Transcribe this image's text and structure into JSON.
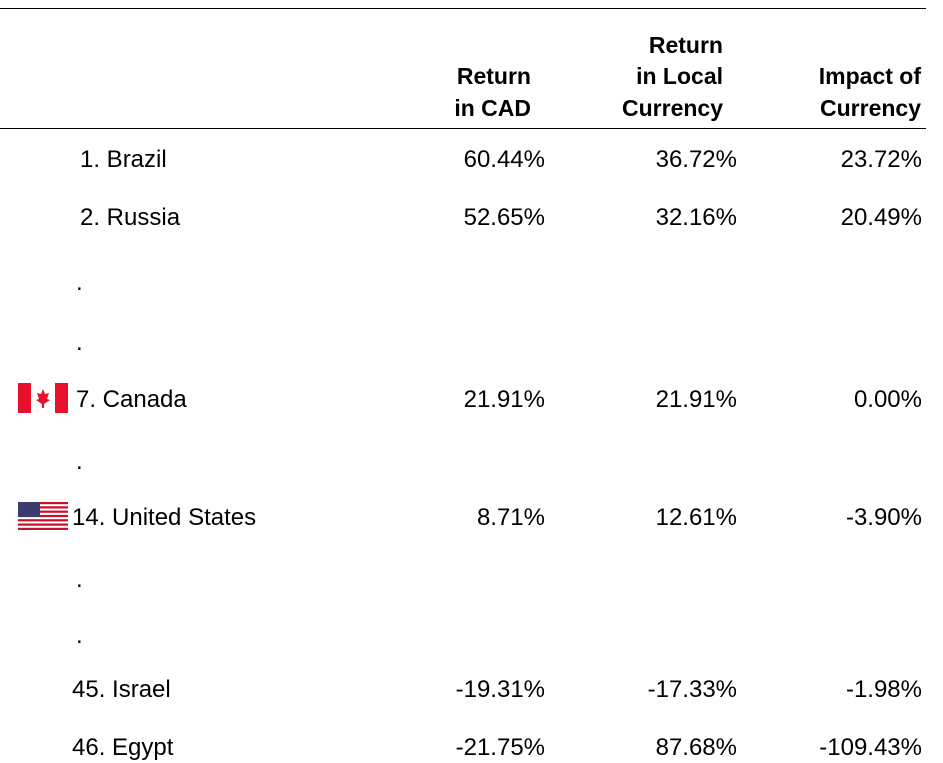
{
  "table": {
    "header": [
      [
        "Return",
        "in CAD"
      ],
      [
        "Return",
        "in Local",
        "Currency"
      ],
      [
        "Impact of",
        "Currency"
      ]
    ],
    "rows": [
      [
        "1. Brazil",
        "60.44%",
        "36.72%",
        "23.72%"
      ],
      [
        "2. Russia",
        "52.65%",
        "32.16%",
        "20.49%"
      ],
      [
        "."
      ],
      [
        "."
      ],
      [
        "7. Canada",
        "21.91%",
        "21.91%",
        "0.00%"
      ],
      [
        "."
      ],
      [
        "14. United States",
        "8.71%",
        "12.61%",
        "-3.90%"
      ],
      [
        "."
      ],
      [
        "."
      ],
      [
        "45. Israel",
        "-19.31%",
        "-17.33%",
        "-1.98%"
      ],
      [
        "46. Egypt",
        "-21.75%",
        "87.68%",
        "-109.43%"
      ]
    ]
  }
}
